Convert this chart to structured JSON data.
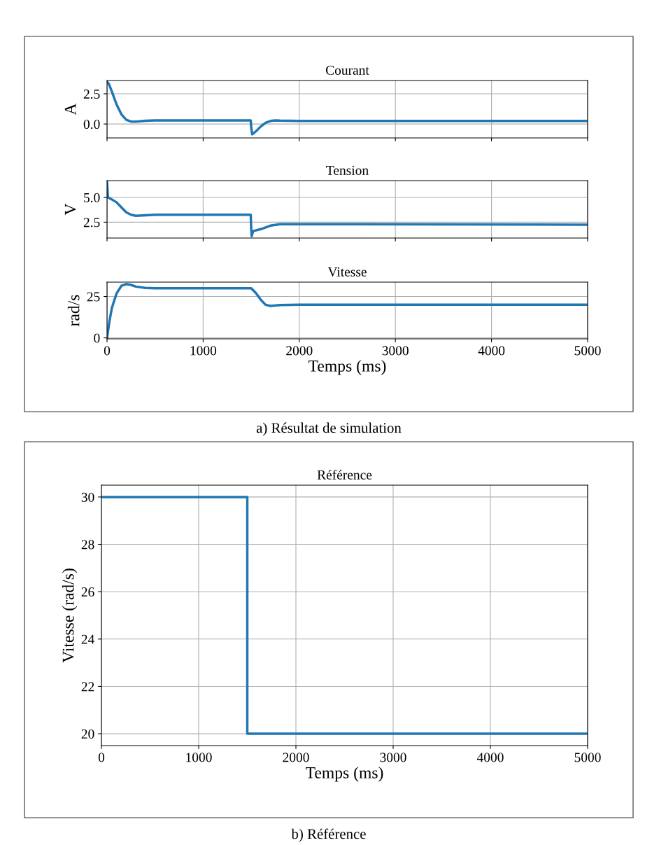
{
  "chart_data": [
    {
      "type": "line",
      "title": "Courant",
      "ylabel": "A",
      "xlim": [
        0,
        5000
      ],
      "xticks": [
        0,
        1000,
        2000,
        3000,
        4000,
        5000
      ],
      "ylim": [
        -1.15,
        3.6
      ],
      "yticks": [
        {
          "value": 0,
          "label": "0.0"
        },
        2.5
      ],
      "grid": true,
      "tick_labels": "y",
      "series": [
        {
          "color": "#1f77b4",
          "x": [
            0,
            20,
            50,
            100,
            150,
            200,
            250,
            300,
            400,
            500,
            1000,
            1495,
            1500,
            1510,
            1550,
            1600,
            1650,
            1700,
            1750,
            1800,
            2000,
            5000
          ],
          "values": [
            3.5,
            3.3,
            2.7,
            1.6,
            0.8,
            0.35,
            0.2,
            0.2,
            0.27,
            0.3,
            0.3,
            0.3,
            -0.3,
            -0.85,
            -0.6,
            -0.2,
            0.1,
            0.25,
            0.3,
            0.28,
            0.25,
            0.25
          ]
        }
      ]
    },
    {
      "type": "line",
      "title": "Tension",
      "ylabel": "V",
      "xlim": [
        0,
        5000
      ],
      "xticks": [
        0,
        1000,
        2000,
        3000,
        4000,
        5000
      ],
      "ylim": [
        0.9,
        6.7
      ],
      "yticks": [
        2.5,
        {
          "value": 5,
          "label": "5.0"
        }
      ],
      "grid": true,
      "tick_labels": "y",
      "series": [
        {
          "color": "#1f77b4",
          "x": [
            0,
            10,
            50,
            100,
            150,
            200,
            250,
            300,
            400,
            500,
            1495,
            1500,
            1505,
            1520,
            1600,
            1700,
            1800,
            2000,
            5000
          ],
          "values": [
            6.5,
            5.0,
            4.8,
            4.5,
            4.0,
            3.5,
            3.25,
            3.15,
            3.2,
            3.25,
            3.25,
            1.8,
            1.1,
            1.6,
            1.8,
            2.15,
            2.3,
            2.3,
            2.25
          ]
        }
      ]
    },
    {
      "type": "line",
      "title": "Vitesse",
      "ylabel": "rad/s",
      "xlabel": "Temps (ms)",
      "xlim": [
        0,
        5000
      ],
      "xticks": [
        0,
        1000,
        2000,
        3000,
        4000,
        5000
      ],
      "ylim": [
        -0.6,
        33.7
      ],
      "yticks": [
        0,
        25
      ],
      "grid": true,
      "annotations": [
        "a) Résultat de simulation"
      ],
      "series": [
        {
          "color": "#1f77b4",
          "x": [
            0,
            25,
            50,
            100,
            150,
            200,
            250,
            300,
            400,
            500,
            1500,
            1550,
            1600,
            1650,
            1700,
            1800,
            2000,
            5000
          ],
          "values": [
            0,
            10,
            18,
            27,
            31.5,
            32.5,
            32,
            31,
            30.2,
            30,
            30,
            27,
            23,
            20,
            19.3,
            19.8,
            20,
            20
          ]
        }
      ]
    },
    {
      "type": "step",
      "title": "Référence",
      "ylabel": "Vitesse (rad/s)",
      "xlabel": "Temps (ms)",
      "xlim": [
        0,
        5000
      ],
      "xticks": [
        0,
        1000,
        2000,
        3000,
        4000,
        5000
      ],
      "ylim": [
        19.5,
        30.5
      ],
      "yticks": [
        20,
        22,
        24,
        26,
        28,
        30
      ],
      "grid": true,
      "annotations": [
        "b) Référence"
      ],
      "series": [
        {
          "color": "#1f77b4",
          "x": [
            0,
            1500,
            5000
          ],
          "values": [
            30,
            20,
            20
          ]
        }
      ]
    }
  ]
}
